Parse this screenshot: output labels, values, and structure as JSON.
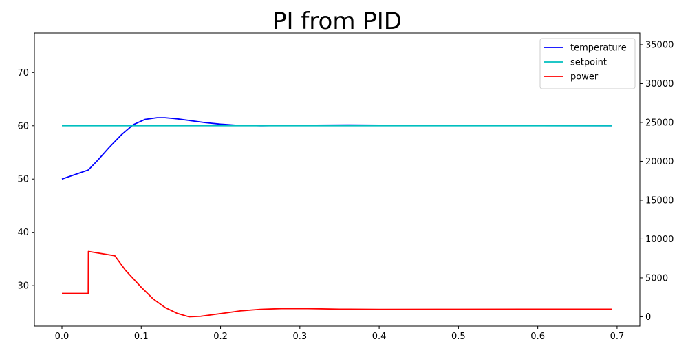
{
  "chart_data": {
    "type": "line",
    "title": "PI from PID",
    "xlabel": "",
    "ylabel": "",
    "y2label": "",
    "xlim": [
      -0.0347,
      0.7287
    ],
    "ylim": [
      22.4,
      77.4
    ],
    "y2lim": [
      -1200,
      36500
    ],
    "x_ticks": [
      0.0,
      0.1,
      0.2,
      0.3,
      0.4,
      0.5,
      0.6,
      0.7
    ],
    "y_ticks": [
      30,
      40,
      50,
      60,
      70
    ],
    "y2_ticks": [
      0,
      5000,
      10000,
      15000,
      20000,
      25000,
      30000,
      35000
    ],
    "grid": false,
    "legend_position": "top-right",
    "colors": {
      "temperature": "#0000ff",
      "setpoint": "#00bfbf",
      "power": "#ff0000"
    },
    "series": [
      {
        "name": "temperature",
        "axis": "left",
        "color": "#0000ff",
        "x": [
          0.0,
          0.0333,
          0.045,
          0.06,
          0.075,
          0.09,
          0.105,
          0.12,
          0.13,
          0.145,
          0.16,
          0.18,
          0.2,
          0.22,
          0.25,
          0.28,
          0.32,
          0.36,
          0.4,
          0.45,
          0.5,
          0.6,
          0.694
        ],
        "y": [
          50.0,
          51.7,
          53.5,
          56.0,
          58.3,
          60.2,
          61.2,
          61.5,
          61.5,
          61.3,
          61.0,
          60.6,
          60.3,
          60.1,
          60.0,
          60.05,
          60.12,
          60.15,
          60.12,
          60.08,
          60.05,
          60.02,
          60.0
        ]
      },
      {
        "name": "setpoint",
        "axis": "left",
        "color": "#00bfbf",
        "x": [
          0.0,
          0.694
        ],
        "y": [
          60.0,
          60.0
        ]
      },
      {
        "name": "power",
        "axis": "right",
        "color": "#ff0000",
        "x": [
          0.0,
          0.0332,
          0.0334,
          0.0667,
          0.08,
          0.1,
          0.115,
          0.13,
          0.145,
          0.16,
          0.175,
          0.2,
          0.225,
          0.25,
          0.28,
          0.31,
          0.35,
          0.4,
          0.5,
          0.6,
          0.694
        ],
        "y": [
          3000,
          3000,
          8400,
          7850,
          6000,
          3800,
          2300,
          1200,
          450,
          0,
          60,
          400,
          760,
          960,
          1060,
          1050,
          980,
          950,
          970,
          980,
          980
        ]
      }
    ]
  }
}
